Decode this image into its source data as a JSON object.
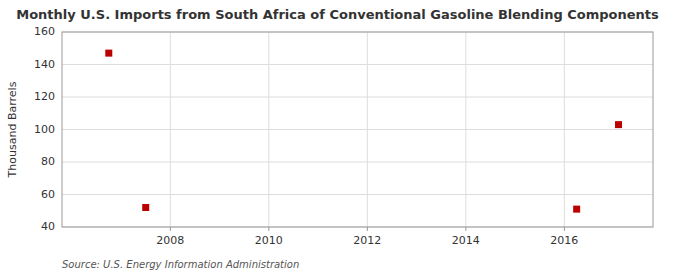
{
  "chart_data": {
    "type": "scatter",
    "title": "Monthly U.S. Imports from South Africa of Conventional Gasoline Blending Components",
    "ylabel": "Thousand Barrels",
    "source": "Source: U.S. Energy Information Administration",
    "x": [
      2006.75,
      2007.5,
      2016.25,
      2017.1
    ],
    "values": [
      147,
      52,
      51,
      103
    ],
    "color": "#bb0000",
    "marker": "square",
    "xlim": [
      2005.8,
      2017.8
    ],
    "xticks": [
      2008,
      2010,
      2012,
      2014,
      2016
    ],
    "ylim": [
      40,
      160
    ],
    "yticks": [
      40,
      60,
      80,
      100,
      120,
      140,
      160
    ],
    "grid": true
  }
}
